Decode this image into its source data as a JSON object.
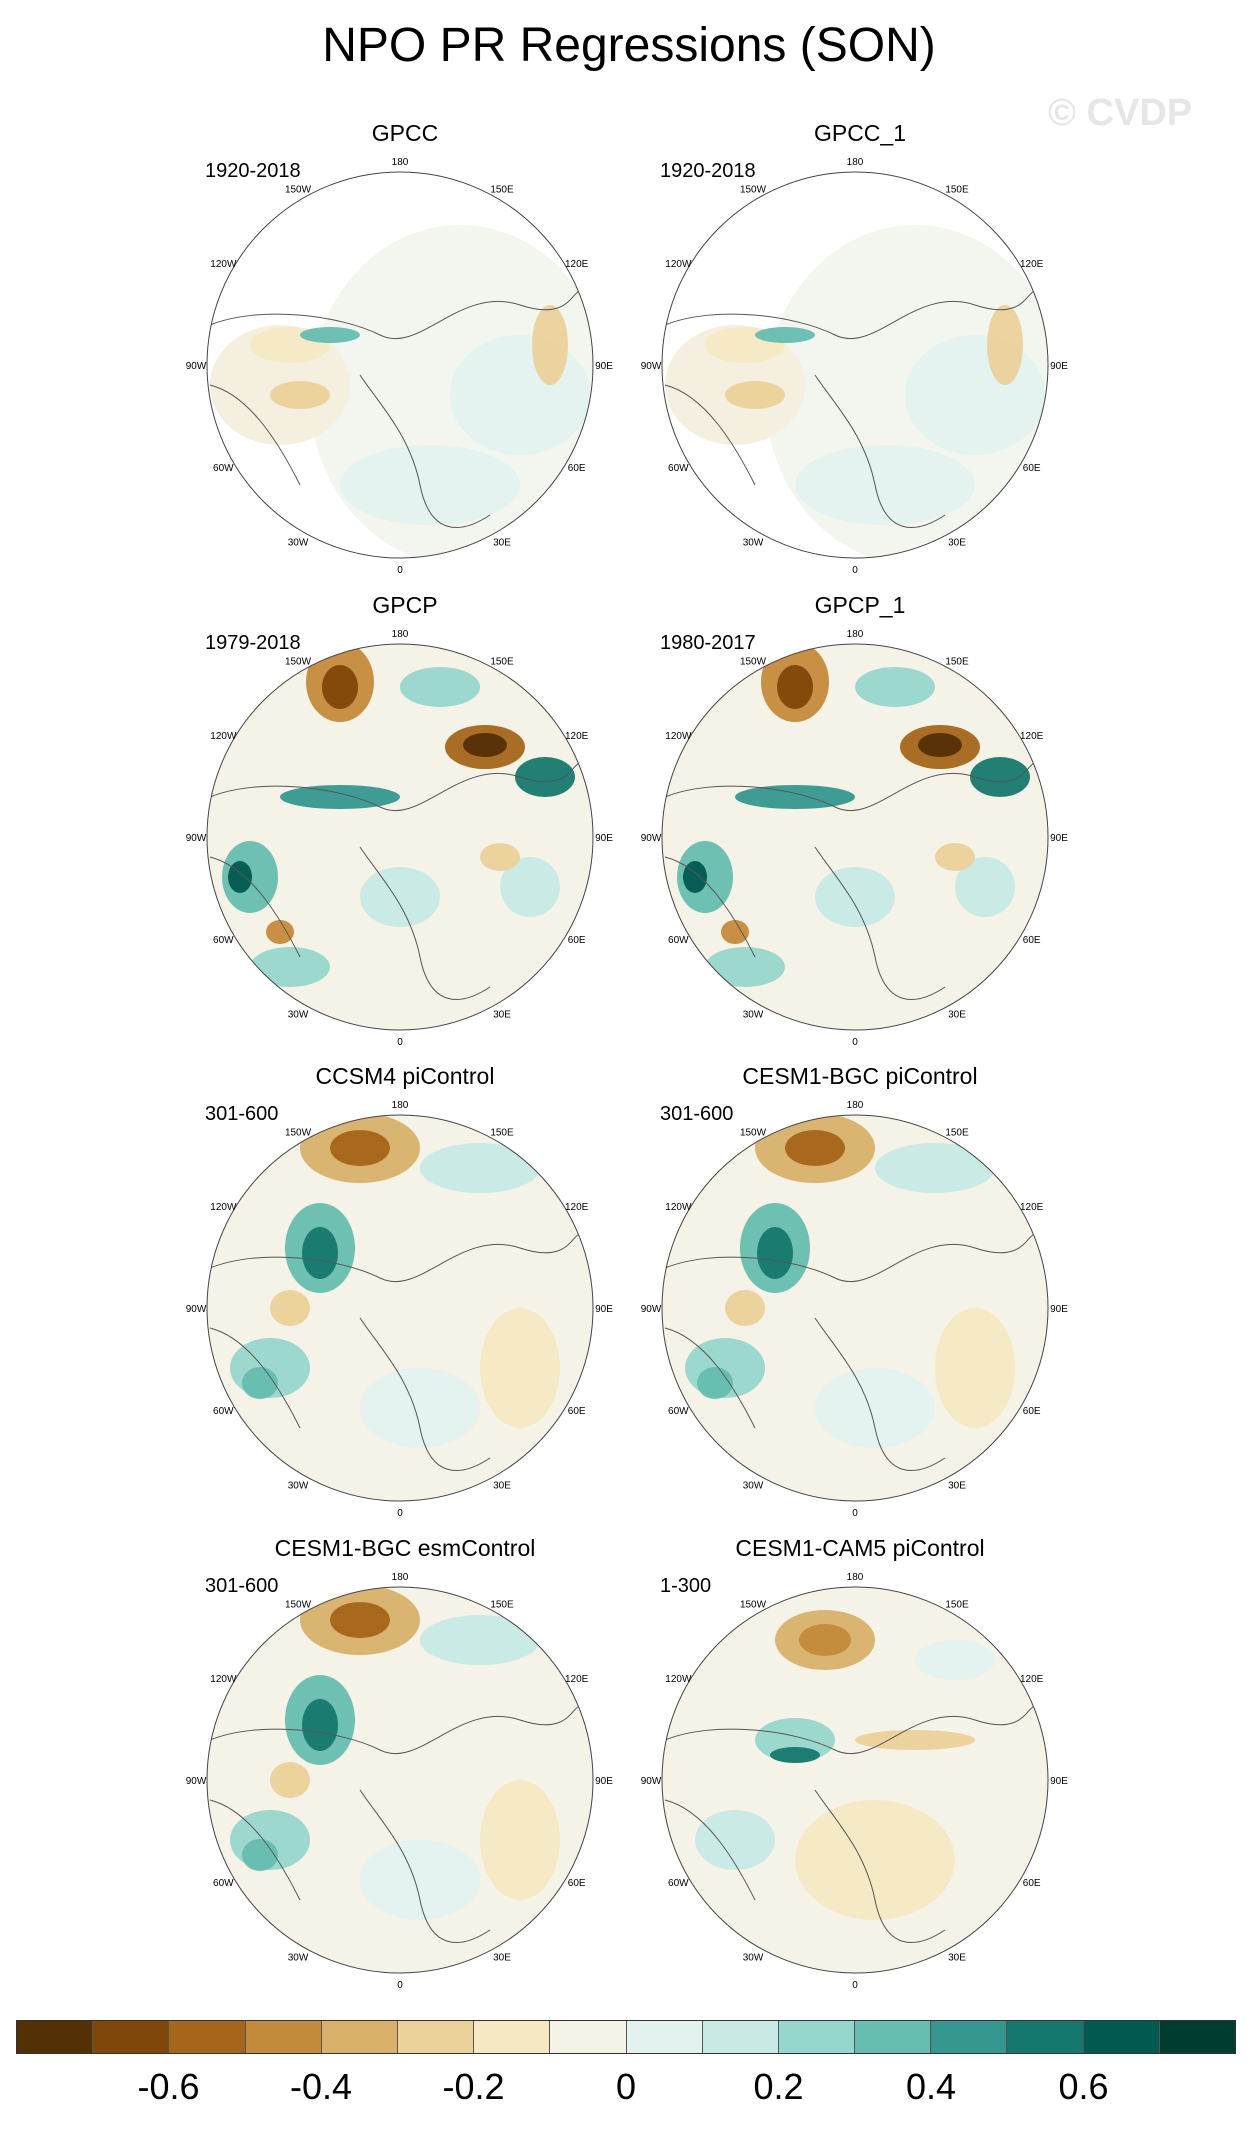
{
  "title": "NPO PR Regressions (SON)",
  "watermark": "© CVDP",
  "longitude_labels": [
    "180",
    "150E",
    "120E",
    "90E",
    "60E",
    "30E",
    "0",
    "30W",
    "60W",
    "90W",
    "120W",
    "150W"
  ],
  "panels": [
    {
      "name": "GPCC",
      "period": "1920-2018",
      "pattern": "gpcc"
    },
    {
      "name": "GPCC_1",
      "period": "1920-2018",
      "pattern": "gpcc"
    },
    {
      "name": "GPCP",
      "period": "1979-2018",
      "pattern": "gpcp"
    },
    {
      "name": "GPCP_1",
      "period": "1980-2017",
      "pattern": "gpcp"
    },
    {
      "name": "CCSM4 piControl",
      "period": "301-600",
      "pattern": "model"
    },
    {
      "name": "CESM1-BGC piControl",
      "period": "301-600",
      "pattern": "model"
    },
    {
      "name": "CESM1-BGC esmControl",
      "period": "301-600",
      "pattern": "model"
    },
    {
      "name": "CESM1-CAM5 piControl",
      "period": "1-300",
      "pattern": "model2"
    }
  ],
  "colorbar": {
    "colors": [
      "#543005",
      "#7f4709",
      "#a5651a",
      "#c48a3b",
      "#d8b06a",
      "#ebd19a",
      "#f6e8c3",
      "#f5f2e7",
      "#e3f2ef",
      "#c7eae5",
      "#97d6cc",
      "#66bdb0",
      "#35978f",
      "#15786e",
      "#01594f",
      "#003c30"
    ],
    "labels": [
      "-0.6",
      "-0.4",
      "-0.2",
      "0",
      "0.2",
      "0.4",
      "0.6"
    ]
  }
}
